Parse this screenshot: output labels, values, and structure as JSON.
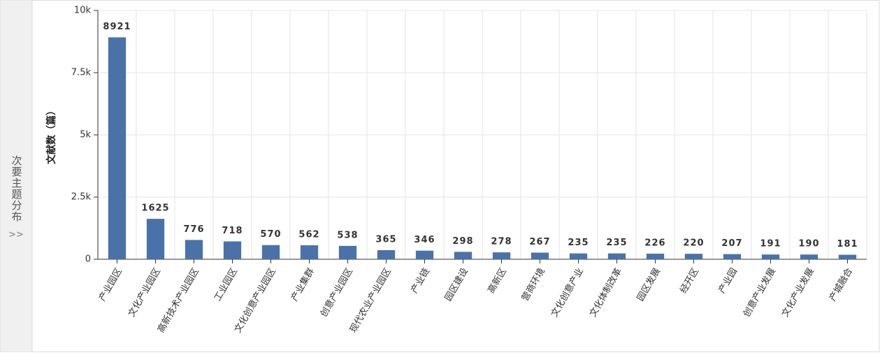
{
  "sidebar": {
    "title": "次要主题分布",
    "toggle": ">>"
  },
  "chart_data": {
    "type": "bar",
    "y_label": "文献数（篇）",
    "categories": [
      "产业园区",
      "文化产业园区",
      "高新技术产业园区",
      "工业园区",
      "文化创意产业园区",
      "产业集群",
      "创意产业园区",
      "现代农业产业园区",
      "产业链",
      "园区建设",
      "高新区",
      "营商环境",
      "文化创意产业",
      "文化体制改革",
      "园区发展",
      "经开区",
      "产业园",
      "创意产业发展",
      "文化产业发展",
      "产城融合"
    ],
    "values": [
      8921,
      1625,
      776,
      718,
      570,
      562,
      538,
      365,
      346,
      298,
      278,
      267,
      235,
      235,
      226,
      220,
      207,
      191,
      190,
      181
    ],
    "color": "#4a72a8",
    "ylim": [
      0,
      10000
    ],
    "yticks": [
      0,
      {
        "value": 2500,
        "label": "2.5k"
      },
      {
        "value": 5000,
        "label": "5k"
      },
      {
        "value": 7500,
        "label": "7.5k"
      },
      {
        "value": 10000,
        "label": "10k"
      }
    ],
    "grid": true
  }
}
